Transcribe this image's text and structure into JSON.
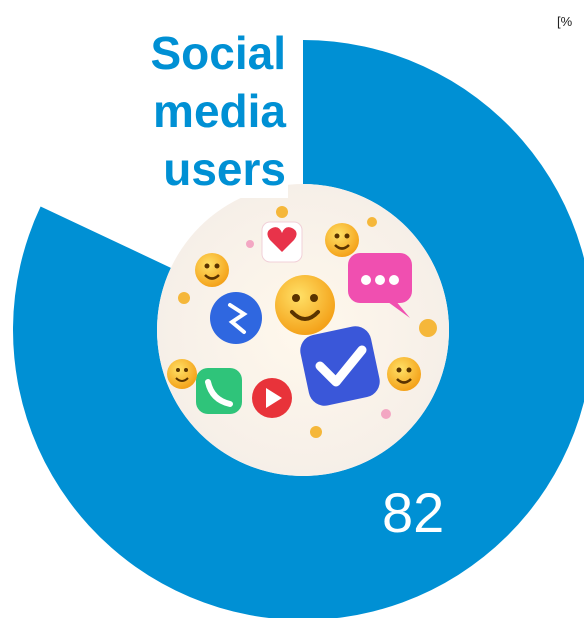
{
  "chart_data": {
    "type": "pie",
    "title_lines": [
      "Social",
      "media",
      "users"
    ],
    "unit_label": "[%",
    "value": 82,
    "max": 100,
    "value_label": "82",
    "colors": {
      "filled": "#0090d4",
      "background": "#ffffff",
      "title": "#0090d4"
    }
  },
  "center_image": {
    "icons": [
      "smiley-icon",
      "heart-icon",
      "chat-bubble-icon",
      "check-badge-icon",
      "play-icon",
      "phone-icon",
      "lightning-icon"
    ]
  }
}
